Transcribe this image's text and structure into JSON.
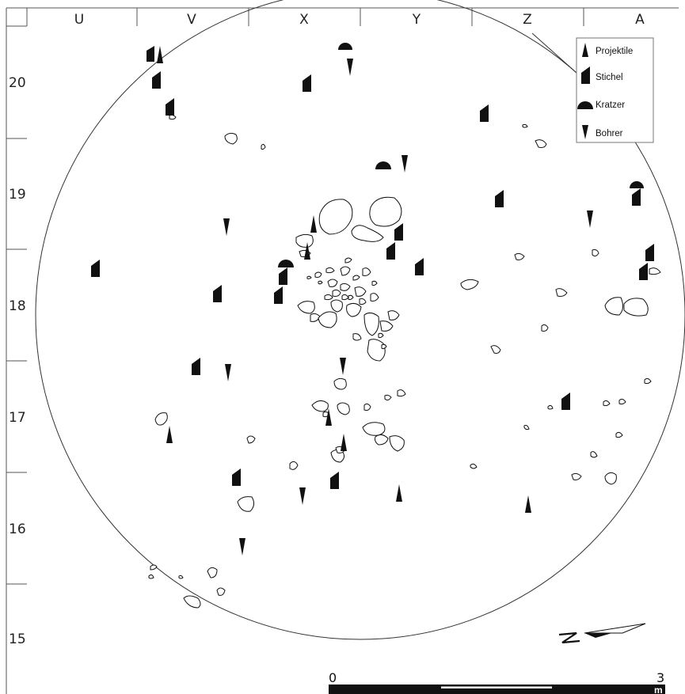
{
  "grid": {
    "columns": [
      "U",
      "V",
      "X",
      "Y",
      "Z",
      "A"
    ],
    "rows": [
      "20",
      "19",
      "18",
      "17",
      "16",
      "15"
    ]
  },
  "legend": {
    "items": [
      {
        "type": "projektil",
        "label": "Projektile",
        "icon": "projectile-icon"
      },
      {
        "type": "stichel",
        "label": "Stichel",
        "icon": "burin-icon"
      },
      {
        "type": "kratzer",
        "label": "Kratzer",
        "icon": "scraper-icon"
      },
      {
        "type": "bohrer",
        "label": "Bohrer",
        "icon": "borer-icon"
      }
    ]
  },
  "scale": {
    "start": "0",
    "end": "3",
    "unit": "m"
  },
  "colors": {
    "ink": "#111111",
    "line": "#222222",
    "background": "#ffffff"
  }
}
